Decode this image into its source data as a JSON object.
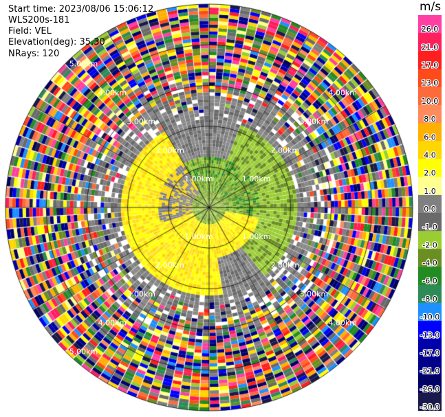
{
  "info": {
    "start_time": "Start time: 2023/08/06 15:06:12",
    "instrument": "WLS200s-181",
    "field": "Field: VEL",
    "elevation": "Elevation(deg): 35.30",
    "nrays": "NRays: 120"
  },
  "chart_data": {
    "type": "heatmap",
    "projection": "polar (PPI scan)",
    "field": "VEL",
    "units": "m/s",
    "n_rays": 120,
    "elevation_deg": 35.3,
    "range_rings_km": [
      "1.00km",
      "2.00km",
      "3.00km",
      "4.00km",
      "5.00km"
    ],
    "colorbar": {
      "label": "m/s",
      "tick_labels": [
        "26.0",
        "21.0",
        "17.0",
        "13.0",
        "10.0",
        "8.0",
        "6.0",
        "4.0",
        "2.0",
        "1.0",
        "0.0",
        "-1.0",
        "-2.0",
        "-4.0",
        "-6.0",
        "-8.0",
        "-10.0",
        "-13.0",
        "-17.0",
        "-21.0",
        "-26.0",
        "-30.0"
      ],
      "colors": [
        "#ff3fa3",
        "#ff1f5a",
        "#ff1f1f",
        "#ff4a1a",
        "#ff6a3a",
        "#ff8a5a",
        "#ffb000",
        "#ffd700",
        "#ffff00",
        "#ffff8f",
        "#808080",
        "#6a6a6a",
        "#9acd32",
        "#6b8e23",
        "#228b22",
        "#2e8b57",
        "#1e90ff",
        "#0000ff",
        "#0000aa",
        "#00008b",
        "#000066",
        "#1a1a4a"
      ]
    },
    "pattern": "near field: yellow (+1 to +4 m/s) to the south/southwest and green (-2 to -6 m/s) to the north/northeast with grey near 0 m/s; beyond about 3 km the field becomes noise with all colours mixed"
  }
}
